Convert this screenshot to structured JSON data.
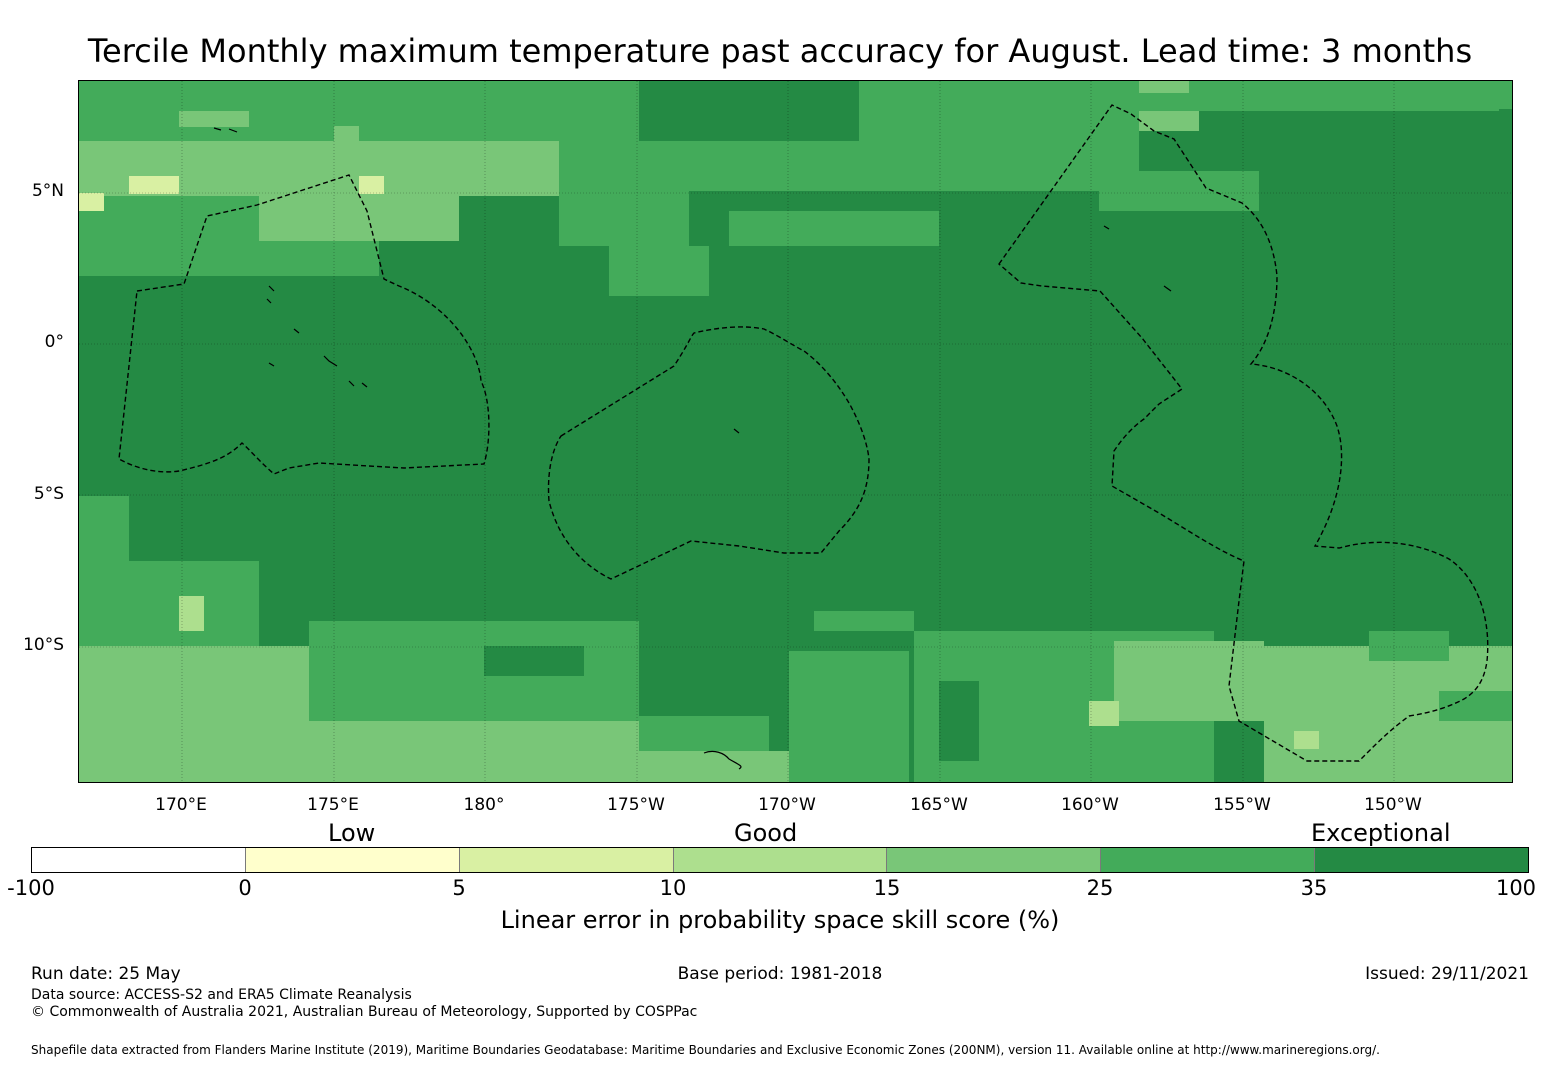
{
  "title": "Tercile Monthly maximum temperature past accuracy for August. Lead time: 3 months",
  "map": {
    "lat_labels": [
      "5°N",
      "0°",
      "5°S",
      "10°S"
    ],
    "lon_labels": [
      "170°E",
      "175°E",
      "180°",
      "175°W",
      "170°W",
      "165°W",
      "160°W",
      "155°W",
      "150°W"
    ],
    "colors": {
      "exceptional": "#248a44",
      "good_high": "#43ab5a",
      "good_mid": "#79c678",
      "good_low": "#addf8e",
      "low_high": "#d9f0a3",
      "low": "#ffffcc",
      "negative": "#ffffff"
    }
  },
  "legend": {
    "categories": [
      "Low",
      "Good",
      "Exceptional"
    ],
    "ticks": [
      "-100",
      "0",
      "5",
      "10",
      "15",
      "25",
      "35",
      "100"
    ],
    "colors": [
      "#ffffff",
      "#ffffcc",
      "#d9f0a3",
      "#addf8e",
      "#79c678",
      "#43ab5a",
      "#248a44"
    ],
    "label": "Linear error in probability space skill score (%)"
  },
  "footer": {
    "run_date": "Run date: 25 May",
    "base_period": "Base period: 1981-2018",
    "issued": "Issued: 29/11/2021",
    "data_source": "Data source: ACCESS-S2 and ERA5 Climate Reanalysis",
    "copyright": "© Commonwealth of Australia 2021, Australian Bureau of Meteorology, Supported by COSPPac",
    "shapefile": "Shapefile data extracted from Flanders Marine Institute (2019), Maritime Boundaries Geodatabase: Maritime Boundaries and Exclusive Economic Zones (200NM), version 11. Available online at http://www.marineregions.org/."
  }
}
